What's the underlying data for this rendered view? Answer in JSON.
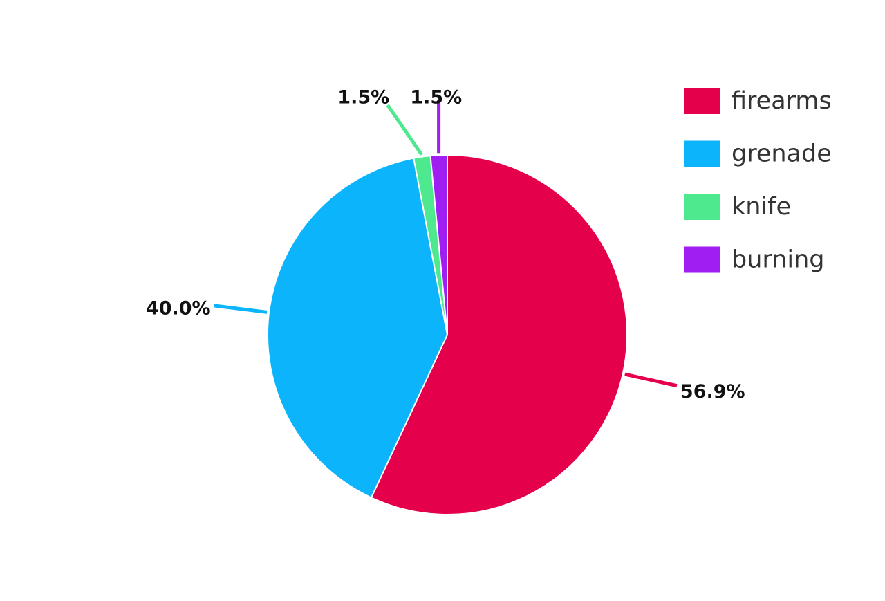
{
  "chart_data": {
    "type": "pie",
    "categories": [
      "firearms",
      "grenade",
      "knife",
      "burning"
    ],
    "values": [
      56.9,
      40.0,
      1.5,
      1.5
    ],
    "value_labels": [
      "56.9%",
      "40.0%",
      "1.5%",
      "1.5%"
    ],
    "colors": [
      "#e4004b",
      "#0bb4fb",
      "#4ee88f",
      "#a01ef2"
    ],
    "legend": "top-right"
  }
}
